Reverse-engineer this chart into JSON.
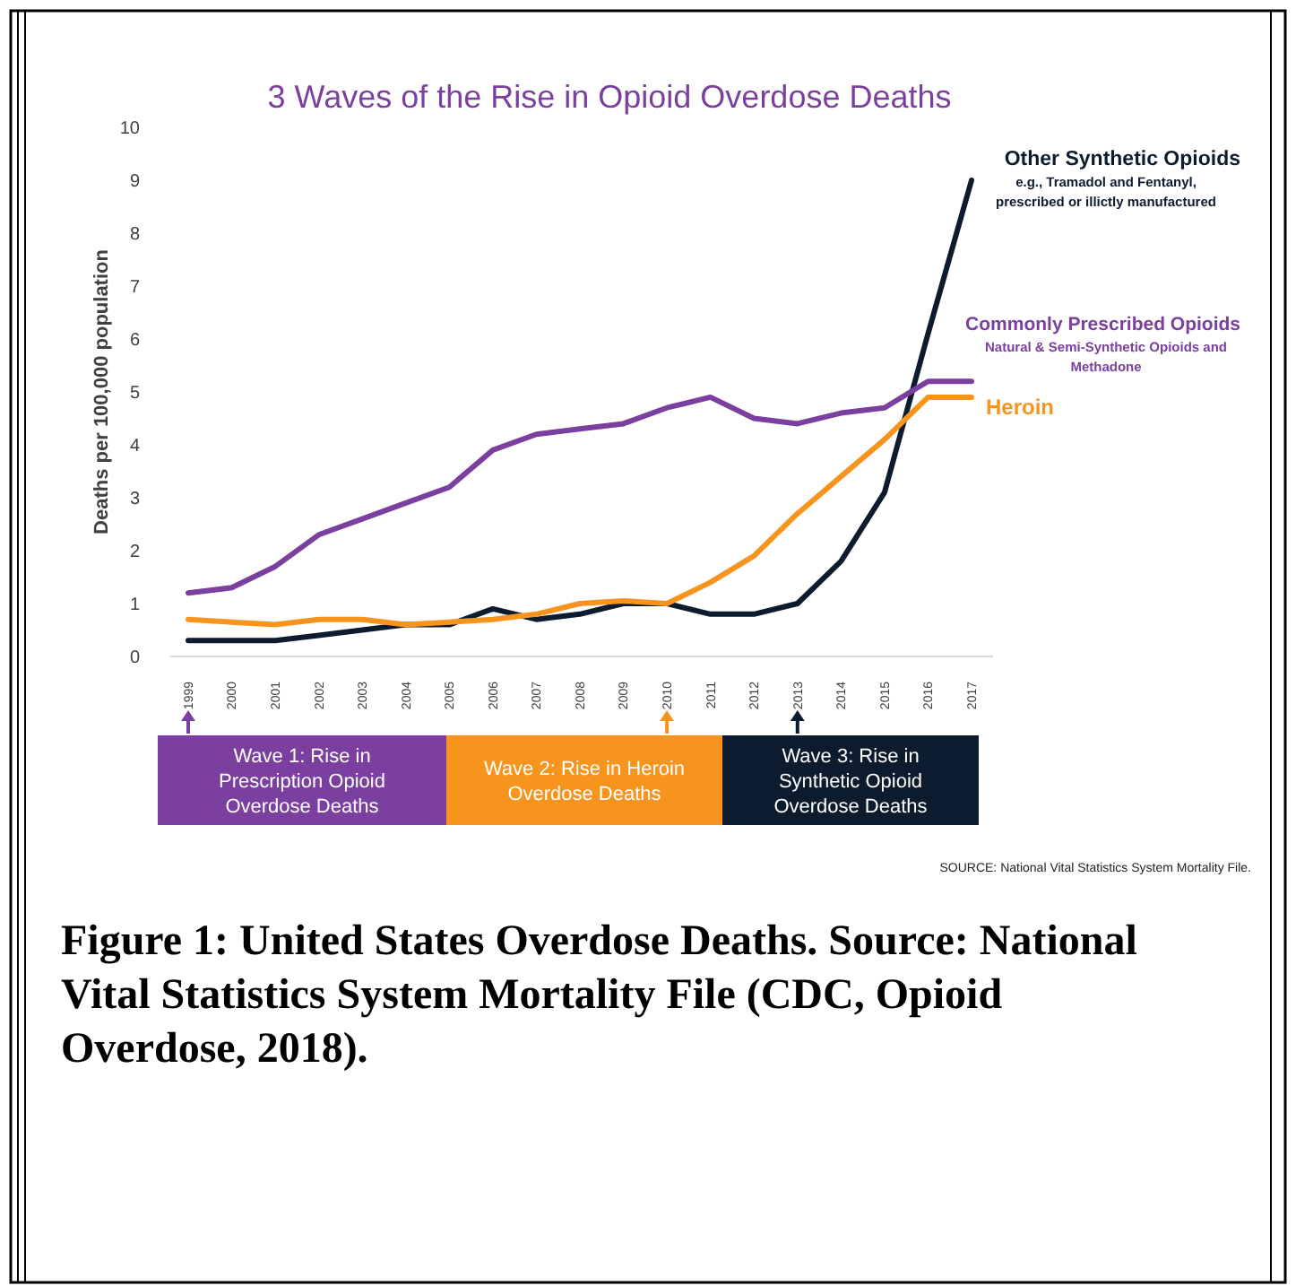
{
  "chart_data": {
    "type": "line",
    "title": "3 Waves of the Rise in Opioid Overdose Deaths",
    "ylabel": "Deaths per 100,000 population",
    "categories": [
      "1999",
      "2000",
      "2001",
      "2002",
      "2003",
      "2004",
      "2005",
      "2006",
      "2007",
      "2008",
      "2009",
      "2010",
      "2011",
      "2012",
      "2013",
      "2014",
      "2015",
      "2016",
      "2017"
    ],
    "series": [
      {
        "name": "Other Synthetic Opioids",
        "color": "#0d1b2e",
        "values": [
          0.3,
          0.3,
          0.3,
          0.4,
          0.5,
          0.6,
          0.6,
          0.9,
          0.7,
          0.8,
          1.0,
          1.0,
          0.8,
          0.8,
          1.0,
          1.8,
          3.1,
          6.1,
          9.0
        ]
      },
      {
        "name": "Commonly Prescribed Opioids",
        "color": "#7b3fa0",
        "values": [
          1.2,
          1.3,
          1.7,
          2.3,
          2.6,
          2.9,
          3.2,
          3.9,
          4.2,
          4.3,
          4.4,
          4.7,
          4.9,
          4.5,
          4.4,
          4.6,
          4.7,
          5.2,
          5.2
        ]
      },
      {
        "name": "Heroin",
        "color": "#f7941d",
        "values": [
          0.7,
          0.65,
          0.6,
          0.7,
          0.7,
          0.6,
          0.65,
          0.7,
          0.8,
          1.0,
          1.05,
          1.0,
          1.4,
          1.9,
          2.7,
          3.4,
          4.1,
          4.9,
          4.9
        ]
      }
    ],
    "ylim": [
      0,
      10
    ],
    "yticks": [
      0,
      1,
      2,
      3,
      4,
      5,
      6,
      7,
      8,
      9,
      10
    ],
    "grid": false,
    "marker": "none",
    "line_style": "solid",
    "annotations": [
      "e.g., Tramadol and Fentanyl, prescribed or illictly manufactured",
      "Natural & Semi-Synthetic Opioids and Methadone",
      "Wave 1: Rise in Prescription Opioid Overdose Deaths",
      "Wave 2: Rise in Heroin Overdose Deaths",
      "Wave 3: Rise in Synthetic Opioid Overdose Deaths",
      "SOURCE: National Vital Statistics System Mortality File.",
      "Figure 1: United States Overdose Deaths. Source: National Vital Statistics System Mortality File (CDC, Opioid Overdose, 2018)."
    ]
  }
}
